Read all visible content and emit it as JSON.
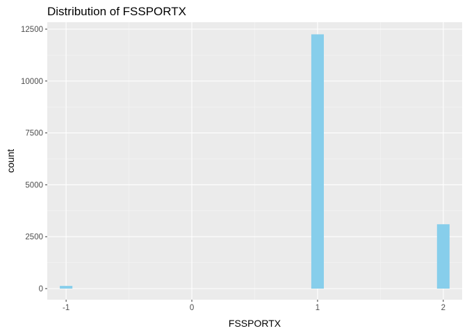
{
  "chart_data": {
    "type": "bar",
    "title": "Distribution of FSSPORTX",
    "xlabel": "FSSPORTX",
    "ylabel": "count",
    "x_ticks": [
      "-1",
      "0",
      "1",
      "2"
    ],
    "y_ticks": [
      "0",
      "2500",
      "5000",
      "7500",
      "10000",
      "12500"
    ],
    "xlim": [
      -1.15,
      2.15
    ],
    "ylim": [
      0,
      13000
    ],
    "bin_width": 0.1,
    "bars": [
      {
        "x": -1,
        "count": 130
      },
      {
        "x": 1,
        "count": 12250
      },
      {
        "x": 2,
        "count": 3100
      }
    ],
    "colors": {
      "bar": "#87CEEB",
      "panel": "#EBEBEB",
      "grid_major": "#FFFFFF",
      "grid_minor": "#F5F5F5"
    },
    "grid": true
  }
}
